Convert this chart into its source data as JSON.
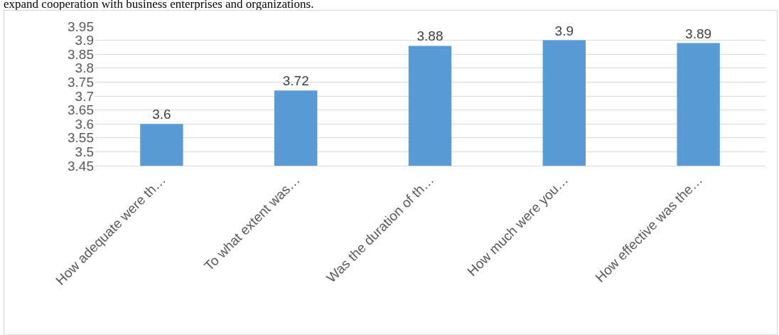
{
  "chart_data": {
    "type": "bar",
    "annotations": [
      "expand cooperation with business enterprises and organizations."
    ],
    "categories": [
      "How adequate were th…",
      "To what extent was…",
      "Was the duration of th…",
      "How much were you…",
      "How effective was the…"
    ],
    "values": [
      3.6,
      3.72,
      3.88,
      3.9,
      3.89
    ],
    "color": "#5b9bd5",
    "ylim": [
      3.45,
      3.95
    ],
    "yticks": [
      3.45,
      3.5,
      3.55,
      3.6,
      3.65,
      3.7,
      3.75,
      3.8,
      3.85,
      3.9,
      3.95
    ],
    "grid": "y",
    "data_labels": true
  }
}
